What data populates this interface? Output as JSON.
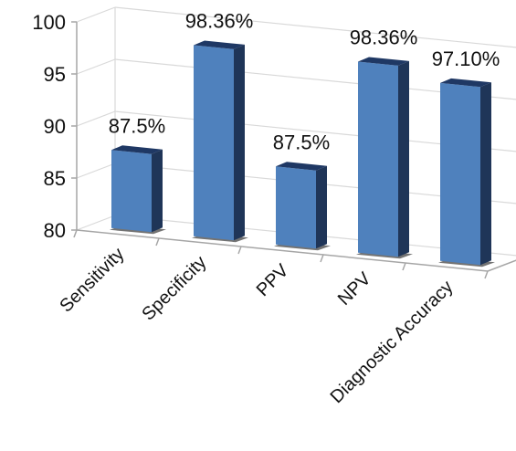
{
  "chart_data": {
    "type": "bar",
    "categories": [
      "Sensitivity",
      "Specificity",
      "PPV",
      "NPV",
      "Diagnostic Accuracy"
    ],
    "values": [
      87.5,
      98.36,
      87.5,
      98.36,
      97.1
    ],
    "data_labels": [
      "87.5%",
      "98.36%",
      "87.5%",
      "98.36%",
      "97.10%"
    ],
    "title": "",
    "xlabel": "",
    "ylabel": "",
    "ylim": [
      80,
      100
    ],
    "yticks": [
      "80",
      "85",
      "90",
      "95",
      "100"
    ],
    "grid": true,
    "legend": "none",
    "style": "3d-column",
    "colors": {
      "bar_front": "#4f81bd",
      "bar_top": "#1f3864",
      "bar_side": "#1f3558",
      "grid": "#d9d9d9",
      "axis": "#a6a6a6"
    }
  }
}
